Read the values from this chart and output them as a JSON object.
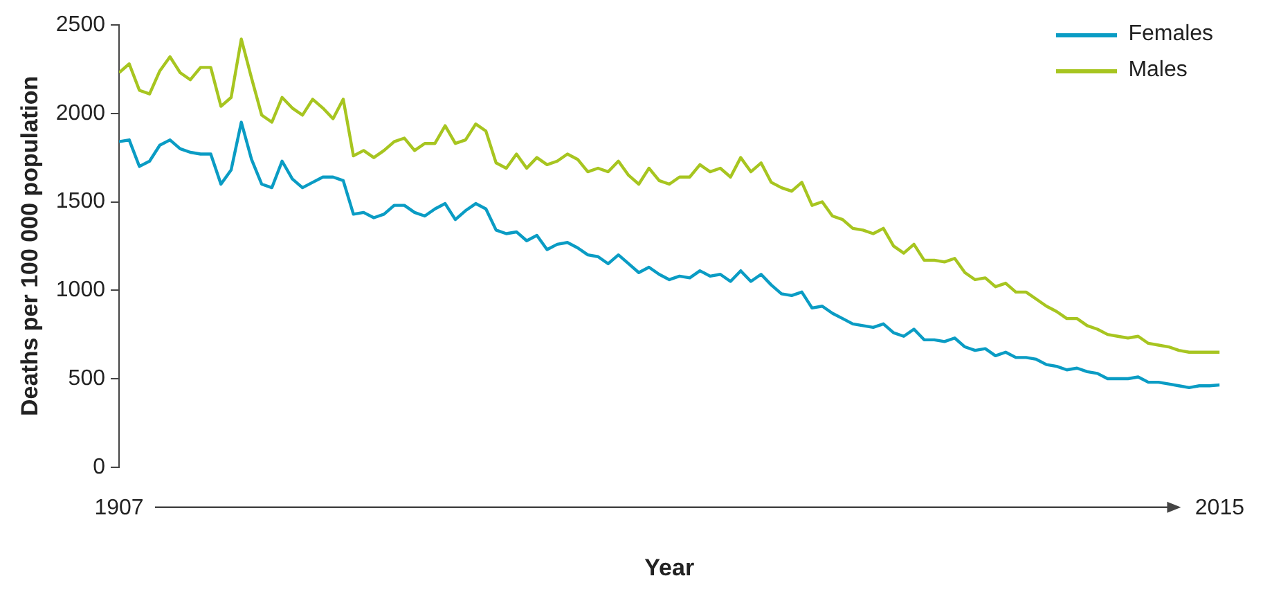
{
  "chart_data": {
    "type": "line",
    "xlabel": "Year",
    "ylabel": "Deaths per 100 000 population",
    "x": [
      1907,
      1908,
      1909,
      1910,
      1911,
      1912,
      1913,
      1914,
      1915,
      1916,
      1917,
      1918,
      1919,
      1920,
      1921,
      1922,
      1923,
      1924,
      1925,
      1926,
      1927,
      1928,
      1929,
      1930,
      1931,
      1932,
      1933,
      1934,
      1935,
      1936,
      1937,
      1938,
      1939,
      1940,
      1941,
      1942,
      1943,
      1944,
      1945,
      1946,
      1947,
      1948,
      1949,
      1950,
      1951,
      1952,
      1953,
      1954,
      1955,
      1956,
      1957,
      1958,
      1959,
      1960,
      1961,
      1962,
      1963,
      1964,
      1965,
      1966,
      1967,
      1968,
      1969,
      1970,
      1971,
      1972,
      1973,
      1974,
      1975,
      1976,
      1977,
      1978,
      1979,
      1980,
      1981,
      1982,
      1983,
      1984,
      1985,
      1986,
      1987,
      1988,
      1989,
      1990,
      1991,
      1992,
      1993,
      1994,
      1995,
      1996,
      1997,
      1998,
      1999,
      2000,
      2001,
      2002,
      2003,
      2004,
      2005,
      2006,
      2007,
      2008,
      2009,
      2010,
      2011,
      2012,
      2013,
      2014,
      2015
    ],
    "series": [
      {
        "name": "Females",
        "color": "#0a9cc4",
        "values": [
          1840,
          1850,
          1700,
          1730,
          1820,
          1850,
          1800,
          1780,
          1770,
          1770,
          1600,
          1680,
          1950,
          1740,
          1600,
          1580,
          1730,
          1630,
          1580,
          1610,
          1640,
          1640,
          1620,
          1430,
          1440,
          1410,
          1430,
          1480,
          1480,
          1440,
          1420,
          1460,
          1490,
          1400,
          1450,
          1490,
          1460,
          1340,
          1320,
          1330,
          1280,
          1310,
          1230,
          1260,
          1270,
          1240,
          1200,
          1190,
          1150,
          1200,
          1150,
          1100,
          1130,
          1090,
          1060,
          1080,
          1070,
          1110,
          1080,
          1090,
          1050,
          1110,
          1050,
          1090,
          1030,
          980,
          970,
          990,
          900,
          910,
          870,
          840,
          810,
          800,
          790,
          810,
          760,
          740,
          780,
          720,
          720,
          710,
          730,
          680,
          660,
          670,
          630,
          650,
          620,
          620,
          610,
          580,
          570,
          550,
          560,
          540,
          530,
          500,
          500,
          500,
          510,
          480,
          480,
          470,
          460,
          450,
          460,
          460,
          465
        ]
      },
      {
        "name": "Males",
        "color": "#a7c520",
        "values": [
          2230,
          2280,
          2130,
          2110,
          2240,
          2320,
          2230,
          2190,
          2260,
          2260,
          2040,
          2090,
          2420,
          2200,
          1990,
          1950,
          2090,
          2030,
          1990,
          2080,
          2030,
          1970,
          2080,
          1760,
          1790,
          1750,
          1790,
          1840,
          1860,
          1790,
          1830,
          1830,
          1930,
          1830,
          1850,
          1940,
          1900,
          1720,
          1690,
          1770,
          1690,
          1750,
          1710,
          1730,
          1770,
          1740,
          1670,
          1690,
          1670,
          1730,
          1650,
          1600,
          1690,
          1620,
          1600,
          1640,
          1640,
          1710,
          1670,
          1690,
          1640,
          1750,
          1670,
          1720,
          1610,
          1580,
          1560,
          1610,
          1480,
          1500,
          1420,
          1400,
          1350,
          1340,
          1320,
          1350,
          1250,
          1210,
          1260,
          1170,
          1170,
          1160,
          1180,
          1100,
          1060,
          1070,
          1020,
          1040,
          990,
          990,
          950,
          910,
          880,
          840,
          840,
          800,
          780,
          750,
          740,
          730,
          740,
          700,
          690,
          680,
          660,
          650,
          650,
          650,
          650
        ]
      }
    ],
    "xlim": [
      1907,
      2015
    ],
    "xticks": [
      1907,
      2015
    ],
    "ylim": [
      0,
      2500
    ],
    "yticks": [
      0,
      500,
      1000,
      1500,
      2000,
      2500
    ],
    "grid": false,
    "legend": "top right",
    "marker": "none",
    "line_style": "solid"
  }
}
